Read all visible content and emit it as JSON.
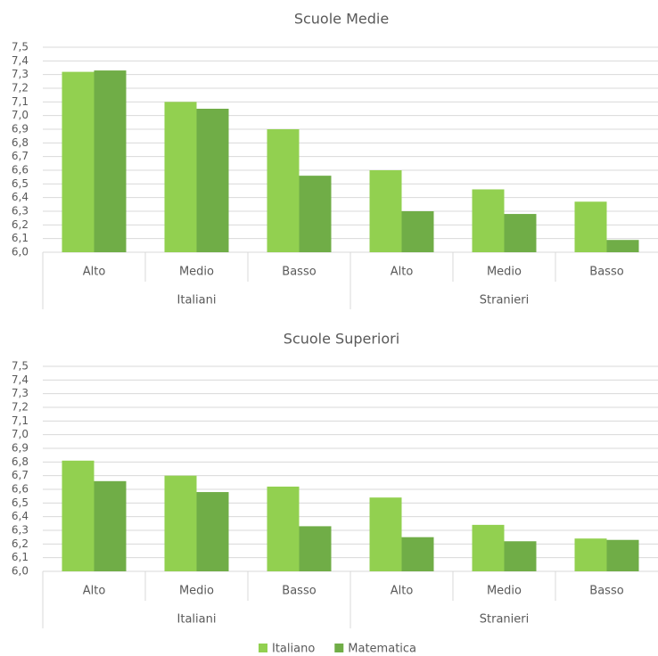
{
  "chart_data": [
    {
      "type": "bar",
      "title": "Scuole Medie",
      "categories": [
        "Alto",
        "Medio",
        "Basso",
        "Alto",
        "Medio",
        "Basso"
      ],
      "groups": [
        "Italiani",
        "Stranieri"
      ],
      "series": [
        {
          "name": "Italiano",
          "color": "#92d050",
          "values": [
            7.32,
            7.1,
            6.9,
            6.6,
            6.46,
            6.37
          ]
        },
        {
          "name": "Matematica",
          "color": "#70ad47",
          "values": [
            7.33,
            7.05,
            6.56,
            6.3,
            6.28,
            6.09
          ]
        }
      ],
      "ylim": [
        6.0,
        7.5
      ],
      "yticks": [
        {
          "value": 6.0,
          "label": "6,0"
        },
        {
          "value": 6.1,
          "label": "6,1"
        },
        {
          "value": 6.2,
          "label": "6,2"
        },
        {
          "value": 6.3,
          "label": "6,3"
        },
        {
          "value": 6.4,
          "label": "6,4"
        },
        {
          "value": 6.5,
          "label": "6,5"
        },
        {
          "value": 6.6,
          "label": "6,6"
        },
        {
          "value": 6.7,
          "label": "6,7"
        },
        {
          "value": 6.8,
          "label": "6,8"
        },
        {
          "value": 6.9,
          "label": "6,9"
        },
        {
          "value": 7.0,
          "label": "7,0"
        },
        {
          "value": 7.1,
          "label": "7,1"
        },
        {
          "value": 7.2,
          "label": "7,2"
        },
        {
          "value": 7.3,
          "label": "7,3"
        },
        {
          "value": 7.4,
          "label": "7,4"
        },
        {
          "value": 7.5,
          "label": "7,5"
        }
      ],
      "grid": true
    },
    {
      "type": "bar",
      "title": "Scuole Superiori",
      "categories": [
        "Alto",
        "Medio",
        "Basso",
        "Alto",
        "Medio",
        "Basso"
      ],
      "groups": [
        "Italiani",
        "Stranieri"
      ],
      "series": [
        {
          "name": "Italiano",
          "color": "#92d050",
          "values": [
            6.81,
            6.7,
            6.62,
            6.54,
            6.34,
            6.24
          ]
        },
        {
          "name": "Matematica",
          "color": "#70ad47",
          "values": [
            6.66,
            6.58,
            6.33,
            6.25,
            6.22,
            6.23
          ]
        }
      ],
      "ylim": [
        6.0,
        7.5
      ],
      "yticks": [
        {
          "value": 6.0,
          "label": "6,0"
        },
        {
          "value": 6.1,
          "label": "6,1"
        },
        {
          "value": 6.2,
          "label": "6,2"
        },
        {
          "value": 6.3,
          "label": "6,3"
        },
        {
          "value": 6.4,
          "label": "6,4"
        },
        {
          "value": 6.5,
          "label": "6,5"
        },
        {
          "value": 6.6,
          "label": "6,6"
        },
        {
          "value": 6.7,
          "label": "6,7"
        },
        {
          "value": 6.8,
          "label": "6,8"
        },
        {
          "value": 6.9,
          "label": "6,9"
        },
        {
          "value": 7.0,
          "label": "7,0"
        },
        {
          "value": 7.1,
          "label": "7,1"
        },
        {
          "value": 7.2,
          "label": "7,2"
        },
        {
          "value": 7.3,
          "label": "7,3"
        },
        {
          "value": 7.4,
          "label": "7,4"
        },
        {
          "value": 7.5,
          "label": "7,5"
        }
      ],
      "grid": true,
      "legend": "bottom"
    }
  ]
}
